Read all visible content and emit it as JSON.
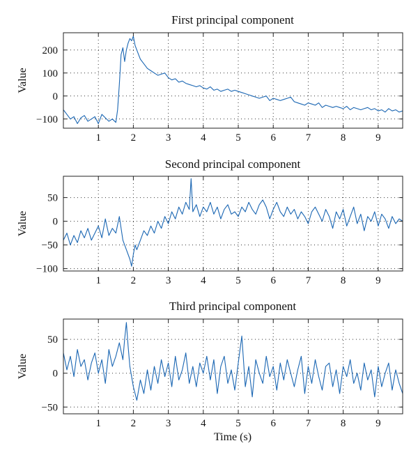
{
  "chart_data": [
    {
      "type": "line",
      "title": "First principal component",
      "ylabel": "Value",
      "xlabel": "",
      "xlim": [
        0,
        9.7
      ],
      "ylim": [
        -140,
        275
      ],
      "xticks": [
        1,
        2,
        3,
        4,
        5,
        6,
        7,
        8,
        9
      ],
      "xtick_labels": [
        "1",
        "2",
        "3",
        "4",
        "5",
        "6",
        "7",
        "8",
        "9"
      ],
      "yticks": [
        -100,
        0,
        100,
        200
      ],
      "ytick_labels": [
        "−100",
        "0",
        "100",
        "200"
      ],
      "grid": true,
      "color": "#1a66b3",
      "series": [
        {
          "x": [
            0,
            0.1,
            0.2,
            0.3,
            0.4,
            0.5,
            0.6,
            0.7,
            0.8,
            0.9,
            1.0,
            1.1,
            1.2,
            1.3,
            1.4,
            1.5,
            1.55,
            1.6,
            1.65,
            1.7,
            1.75,
            1.8,
            1.85,
            1.9,
            1.95,
            2.0,
            2.05,
            2.1,
            2.15,
            2.2,
            2.3,
            2.4,
            2.5,
            2.6,
            2.7,
            2.8,
            2.9,
            3.0,
            3.1,
            3.2,
            3.3,
            3.4,
            3.5,
            3.6,
            3.7,
            3.8,
            3.9,
            4.0,
            4.1,
            4.2,
            4.3,
            4.4,
            4.5,
            4.6,
            4.7,
            4.8,
            4.9,
            5.0,
            5.1,
            5.2,
            5.3,
            5.4,
            5.5,
            5.6,
            5.7,
            5.8,
            5.9,
            6.0,
            6.1,
            6.2,
            6.3,
            6.4,
            6.5,
            6.6,
            6.7,
            6.8,
            6.9,
            7.0,
            7.1,
            7.2,
            7.3,
            7.4,
            7.5,
            7.6,
            7.7,
            7.8,
            7.9,
            8.0,
            8.1,
            8.2,
            8.3,
            8.4,
            8.5,
            8.6,
            8.7,
            8.8,
            8.9,
            9.0,
            9.1,
            9.2,
            9.3,
            9.4,
            9.5,
            9.6,
            9.7
          ],
          "y": [
            -60,
            -80,
            -100,
            -90,
            -120,
            -95,
            -85,
            -110,
            -100,
            -90,
            -120,
            -80,
            -95,
            -110,
            -100,
            -115,
            -60,
            50,
            180,
            210,
            150,
            200,
            230,
            250,
            240,
            260,
            220,
            200,
            180,
            160,
            140,
            120,
            110,
            100,
            90,
            95,
            100,
            80,
            70,
            75,
            60,
            65,
            55,
            50,
            45,
            40,
            45,
            35,
            30,
            40,
            25,
            30,
            20,
            25,
            30,
            20,
            25,
            20,
            15,
            10,
            5,
            0,
            -5,
            -10,
            -5,
            0,
            -20,
            -10,
            -15,
            -20,
            -15,
            -10,
            -5,
            -25,
            -30,
            -35,
            -40,
            -30,
            -35,
            -40,
            -30,
            -50,
            -40,
            -45,
            -50,
            -45,
            -50,
            -55,
            -45,
            -60,
            -50,
            -55,
            -60,
            -55,
            -50,
            -60,
            -55,
            -65,
            -60,
            -70,
            -55,
            -65,
            -60,
            -70,
            -65
          ]
        }
      ]
    },
    {
      "type": "line",
      "title": "Second principal component",
      "ylabel": "Value",
      "xlabel": "",
      "xlim": [
        0,
        9.7
      ],
      "ylim": [
        -105,
        95
      ],
      "xticks": [
        1,
        2,
        3,
        4,
        5,
        6,
        7,
        8,
        9
      ],
      "xtick_labels": [
        "1",
        "2",
        "3",
        "4",
        "5",
        "6",
        "7",
        "8",
        "9"
      ],
      "yticks": [
        -100,
        -50,
        0,
        50
      ],
      "ytick_labels": [
        "−100",
        "−50",
        "0",
        "50"
      ],
      "grid": true,
      "color": "#1a66b3",
      "series": [
        {
          "x": [
            0,
            0.1,
            0.2,
            0.3,
            0.4,
            0.5,
            0.6,
            0.7,
            0.8,
            0.9,
            1.0,
            1.1,
            1.2,
            1.3,
            1.4,
            1.5,
            1.6,
            1.7,
            1.8,
            1.9,
            1.95,
            2.0,
            2.05,
            2.1,
            2.2,
            2.3,
            2.4,
            2.5,
            2.6,
            2.7,
            2.8,
            2.9,
            3.0,
            3.1,
            3.2,
            3.3,
            3.4,
            3.5,
            3.6,
            3.65,
            3.7,
            3.8,
            3.9,
            4.0,
            4.1,
            4.2,
            4.3,
            4.4,
            4.5,
            4.6,
            4.7,
            4.8,
            4.9,
            5.0,
            5.1,
            5.2,
            5.3,
            5.4,
            5.5,
            5.6,
            5.7,
            5.8,
            5.9,
            6.0,
            6.1,
            6.2,
            6.3,
            6.4,
            6.5,
            6.6,
            6.7,
            6.8,
            6.9,
            7.0,
            7.1,
            7.2,
            7.3,
            7.4,
            7.5,
            7.6,
            7.7,
            7.8,
            7.9,
            8.0,
            8.1,
            8.2,
            8.3,
            8.4,
            8.5,
            8.6,
            8.7,
            8.8,
            8.9,
            9.0,
            9.1,
            9.2,
            9.3,
            9.4,
            9.5,
            9.6,
            9.7
          ],
          "y": [
            -40,
            -25,
            -50,
            -30,
            -45,
            -20,
            -35,
            -15,
            -40,
            -25,
            -10,
            -35,
            5,
            -30,
            -15,
            -25,
            10,
            -40,
            -60,
            -80,
            -95,
            -70,
            -50,
            -60,
            -40,
            -20,
            -30,
            -10,
            -25,
            0,
            -15,
            10,
            -5,
            20,
            5,
            30,
            15,
            40,
            25,
            90,
            20,
            35,
            10,
            30,
            20,
            40,
            15,
            30,
            5,
            25,
            35,
            15,
            20,
            10,
            30,
            20,
            40,
            25,
            15,
            35,
            45,
            30,
            5,
            25,
            40,
            20,
            10,
            30,
            15,
            25,
            5,
            20,
            10,
            -5,
            20,
            30,
            15,
            0,
            25,
            10,
            -15,
            20,
            5,
            25,
            -10,
            10,
            30,
            -5,
            15,
            -20,
            10,
            0,
            20,
            -10,
            15,
            5,
            -15,
            10,
            -5,
            5,
            0
          ]
        }
      ]
    },
    {
      "type": "line",
      "title": "Third principal component",
      "ylabel": "Value",
      "xlabel": "Time (s)",
      "xlim": [
        0,
        9.7
      ],
      "ylim": [
        -60,
        80
      ],
      "xticks": [
        1,
        2,
        3,
        4,
        5,
        6,
        7,
        8,
        9
      ],
      "xtick_labels": [
        "1",
        "2",
        "3",
        "4",
        "5",
        "6",
        "7",
        "8",
        "9"
      ],
      "yticks": [
        -50,
        0,
        50
      ],
      "ytick_labels": [
        "−50",
        "0",
        "50"
      ],
      "grid": true,
      "color": "#1a66b3",
      "series": [
        {
          "x": [
            0,
            0.1,
            0.2,
            0.3,
            0.4,
            0.5,
            0.6,
            0.7,
            0.8,
            0.9,
            1.0,
            1.1,
            1.2,
            1.3,
            1.4,
            1.5,
            1.6,
            1.7,
            1.75,
            1.8,
            1.85,
            1.9,
            2.0,
            2.1,
            2.2,
            2.3,
            2.4,
            2.5,
            2.6,
            2.7,
            2.8,
            2.9,
            3.0,
            3.1,
            3.2,
            3.3,
            3.4,
            3.5,
            3.6,
            3.7,
            3.8,
            3.9,
            4.0,
            4.1,
            4.2,
            4.3,
            4.4,
            4.5,
            4.6,
            4.7,
            4.8,
            4.9,
            5.0,
            5.1,
            5.2,
            5.3,
            5.4,
            5.5,
            5.6,
            5.7,
            5.8,
            5.9,
            6.0,
            6.1,
            6.2,
            6.3,
            6.4,
            6.5,
            6.6,
            6.7,
            6.8,
            6.9,
            7.0,
            7.1,
            7.2,
            7.3,
            7.4,
            7.5,
            7.6,
            7.7,
            7.8,
            7.9,
            8.0,
            8.1,
            8.2,
            8.3,
            8.4,
            8.5,
            8.6,
            8.7,
            8.8,
            8.9,
            9.0,
            9.1,
            9.2,
            9.3,
            9.4,
            9.5,
            9.6,
            9.7
          ],
          "y": [
            30,
            5,
            25,
            -5,
            35,
            10,
            20,
            -10,
            15,
            30,
            0,
            20,
            -15,
            35,
            10,
            25,
            45,
            20,
            50,
            75,
            40,
            10,
            -20,
            -40,
            -10,
            -30,
            5,
            -25,
            10,
            -15,
            20,
            -5,
            15,
            -20,
            25,
            -10,
            5,
            30,
            -15,
            10,
            -20,
            15,
            0,
            25,
            -10,
            20,
            -30,
            10,
            25,
            -15,
            5,
            -25,
            15,
            55,
            -20,
            10,
            -35,
            20,
            0,
            -15,
            25,
            -5,
            10,
            -25,
            15,
            -10,
            20,
            0,
            -20,
            5,
            25,
            -30,
            10,
            -15,
            20,
            -5,
            -25,
            10,
            15,
            -20,
            5,
            -30,
            10,
            -5,
            20,
            -15,
            0,
            -25,
            15,
            -10,
            5,
            -35,
            10,
            -20,
            0,
            15,
            -25,
            5,
            -15,
            -30
          ]
        }
      ]
    }
  ]
}
